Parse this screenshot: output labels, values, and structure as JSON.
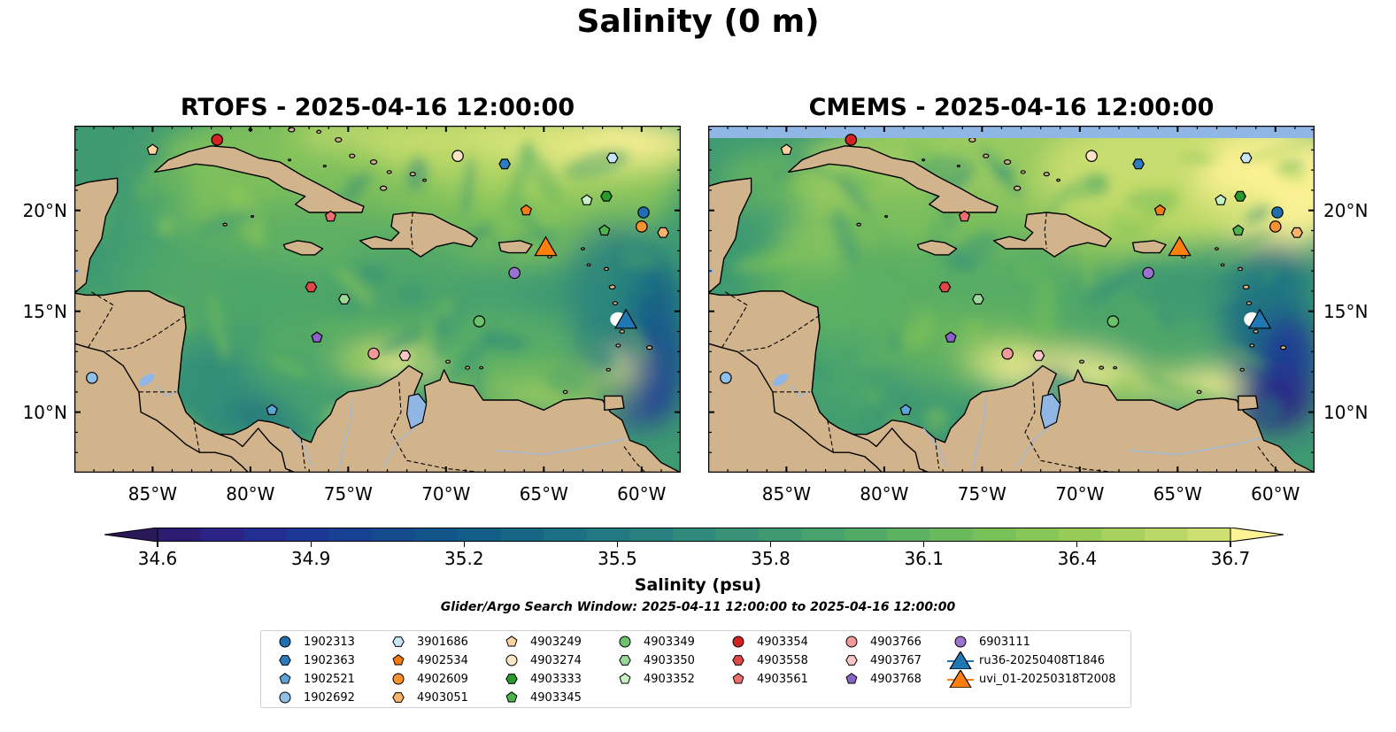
{
  "figure": {
    "suptitle": "Salinity (0 m)",
    "search_window": "Glider/Argo Search Window: 2025-04-11 12:00:00 to 2025-04-16 12:00:00"
  },
  "panels": [
    {
      "title": "RTOFS - 2025-04-16 12:00:00",
      "model": "RTOFS"
    },
    {
      "title": "CMEMS - 2025-04-16 12:00:00",
      "model": "CMEMS"
    }
  ],
  "map_extent": {
    "lon": [
      -89,
      -58
    ],
    "lat": [
      7,
      24.2
    ]
  },
  "x_ticks": [
    {
      "lon": -85,
      "label": "85°W"
    },
    {
      "lon": -80,
      "label": "80°W"
    },
    {
      "lon": -75,
      "label": "75°W"
    },
    {
      "lon": -70,
      "label": "70°W"
    },
    {
      "lon": -65,
      "label": "65°W"
    },
    {
      "lon": -60,
      "label": "60°W"
    }
  ],
  "y_ticks": [
    {
      "lat": 20,
      "label": "20°N"
    },
    {
      "lat": 15,
      "label": "15°N"
    },
    {
      "lat": 10,
      "label": "10°N"
    }
  ],
  "colorbar": {
    "label": "Salinity (psu)",
    "min": 34.6,
    "max": 36.7,
    "ticks": [
      "34.6",
      "34.9",
      "35.2",
      "35.5",
      "35.8",
      "36.1",
      "36.4",
      "36.7"
    ],
    "colormap": "haline",
    "extend": "both",
    "colors": [
      "#2a1858",
      "#2c1d72",
      "#2b2486",
      "#242d92",
      "#1d3796",
      "#174193",
      "#144b8f",
      "#12558b",
      "#135e88",
      "#166785",
      "#1b7083",
      "#217981",
      "#28817e",
      "#2f8a7b",
      "#379277",
      "#3f9a72",
      "#48a26d",
      "#52aa67",
      "#5db261",
      "#6ab95c",
      "#78c058",
      "#87c657",
      "#97cc58",
      "#a8d25d",
      "#bad865",
      "#cddf70",
      "#fef297"
    ]
  },
  "legend": {
    "entries": [
      {
        "label": "1902313",
        "marker": "circle",
        "color": "#1f6fb0"
      },
      {
        "label": "1902363",
        "marker": "hexagon",
        "color": "#2e7cc0"
      },
      {
        "label": "1902521",
        "marker": "pentagon",
        "color": "#5aa5d8"
      },
      {
        "label": "1902692",
        "marker": "circle",
        "color": "#8fc0e8"
      },
      {
        "label": "3901686",
        "marker": "hexagon",
        "color": "#c8e6f8"
      },
      {
        "label": "4902534",
        "marker": "pentagon",
        "color": "#f47a12"
      },
      {
        "label": "4902609",
        "marker": "circle",
        "color": "#f7922e"
      },
      {
        "label": "4903051",
        "marker": "hexagon",
        "color": "#fbb26a"
      },
      {
        "label": "4903249",
        "marker": "pentagon",
        "color": "#fdd2a0"
      },
      {
        "label": "4903274",
        "marker": "circle",
        "color": "#fde5c6"
      },
      {
        "label": "4903333",
        "marker": "hexagon",
        "color": "#2a9a2a"
      },
      {
        "label": "4903345",
        "marker": "pentagon",
        "color": "#4db34d"
      },
      {
        "label": "4903349",
        "marker": "circle",
        "color": "#6cc26c"
      },
      {
        "label": "4903350",
        "marker": "hexagon",
        "color": "#9ad89a"
      },
      {
        "label": "4903352",
        "marker": "pentagon",
        "color": "#c9efc4"
      },
      {
        "label": "4903354",
        "marker": "circle",
        "color": "#d42222"
      },
      {
        "label": "4903558",
        "marker": "hexagon",
        "color": "#e04848"
      },
      {
        "label": "4903561",
        "marker": "pentagon",
        "color": "#ec6e6e"
      },
      {
        "label": "4903766",
        "marker": "circle",
        "color": "#f29a9a"
      },
      {
        "label": "4903767",
        "marker": "hexagon",
        "color": "#f9c6c6"
      },
      {
        "label": "4903768",
        "marker": "pentagon",
        "color": "#8d62c8"
      },
      {
        "label": "6903111",
        "marker": "circle",
        "color": "#9c72d0"
      },
      {
        "label": "ru36-20250408T1846",
        "marker": "triangle",
        "color": "#1f77b4"
      },
      {
        "label": "uvi_01-20250318T2008",
        "marker": "triangle",
        "color": "#ff7f0e"
      }
    ]
  },
  "platforms": [
    {
      "id": "1902313",
      "lon": -59.9,
      "lat": 19.9
    },
    {
      "id": "1902363",
      "lon": -67.0,
      "lat": 22.3
    },
    {
      "id": "1902521",
      "lon": -78.9,
      "lat": 10.1
    },
    {
      "id": "1902692",
      "lon": -88.1,
      "lat": 11.7
    },
    {
      "id": "3901686",
      "lon": -61.5,
      "lat": 22.6
    },
    {
      "id": "4902534",
      "lon": -65.9,
      "lat": 20.0
    },
    {
      "id": "4902609",
      "lon": -60.0,
      "lat": 19.2
    },
    {
      "id": "4903051",
      "lon": -58.9,
      "lat": 18.9
    },
    {
      "id": "4903249",
      "lon": -85.0,
      "lat": 23.0
    },
    {
      "id": "4903274",
      "lon": -69.4,
      "lat": 22.7
    },
    {
      "id": "4903333",
      "lon": -61.8,
      "lat": 20.7
    },
    {
      "id": "4903345",
      "lon": -61.9,
      "lat": 19.0
    },
    {
      "id": "4903349",
      "lon": -68.3,
      "lat": 14.5
    },
    {
      "id": "4903350",
      "lon": -75.2,
      "lat": 15.6
    },
    {
      "id": "4903352",
      "lon": -62.8,
      "lat": 20.5
    },
    {
      "id": "4903354",
      "lon": -81.7,
      "lat": 23.5
    },
    {
      "id": "4903558",
      "lon": -76.9,
      "lat": 16.2
    },
    {
      "id": "4903561",
      "lon": -75.9,
      "lat": 19.7
    },
    {
      "id": "4903766",
      "lon": -73.7,
      "lat": 12.9
    },
    {
      "id": "4903767",
      "lon": -72.1,
      "lat": 12.8
    },
    {
      "id": "4903768",
      "lon": -76.6,
      "lat": 13.7
    },
    {
      "id": "6903111",
      "lon": -66.5,
      "lat": 16.9
    },
    {
      "id": "ru36-20250408T1846",
      "lon": -60.8,
      "lat": 14.6
    },
    {
      "id": "uvi_01-20250318T2008",
      "lon": -64.9,
      "lat": 18.2
    }
  ]
}
